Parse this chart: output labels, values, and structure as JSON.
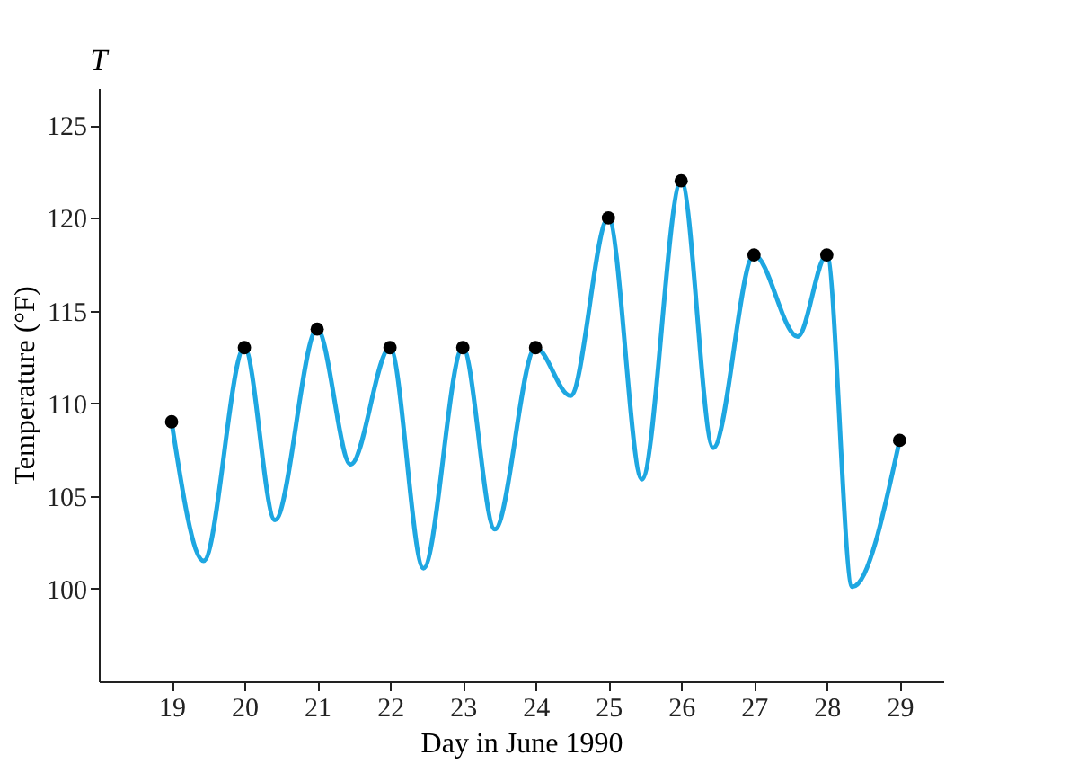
{
  "chart_data": {
    "type": "line",
    "xlabel": "Day in June 1990",
    "ylabel": "Temperature (°F)",
    "annotations": [
      "T"
    ],
    "xlim": [
      18,
      29.6
    ],
    "ylim": [
      95,
      127
    ],
    "xticks": [
      19,
      20,
      21,
      22,
      23,
      24,
      25,
      26,
      27,
      28,
      29
    ],
    "yticks": [
      100,
      105,
      110,
      115,
      120,
      125
    ],
    "grid": false,
    "series": [
      {
        "color": "#1ea7e1",
        "marker": "none",
        "line_style": "solid",
        "x": [
          19,
          19.44,
          20,
          20.42,
          21,
          21.46,
          22,
          22.46,
          23,
          23.44,
          24,
          24.48,
          25,
          25.46,
          26,
          26.44,
          27,
          27.6,
          28,
          28.35,
          29
        ],
        "values": [
          109,
          101.5,
          113,
          103.7,
          114,
          106.7,
          113,
          101.1,
          113,
          103.2,
          113,
          110.4,
          120,
          105.9,
          122,
          107.6,
          118,
          113.6,
          118,
          100.1,
          108
        ]
      },
      {
        "type": "scatter",
        "color": "#000000",
        "marker": "circle",
        "x": [
          19,
          20,
          21,
          22,
          23,
          24,
          25,
          26,
          27,
          28,
          29
        ],
        "values": [
          109,
          113,
          114,
          113,
          113,
          113,
          120,
          122,
          118,
          118,
          108
        ]
      }
    ]
  }
}
